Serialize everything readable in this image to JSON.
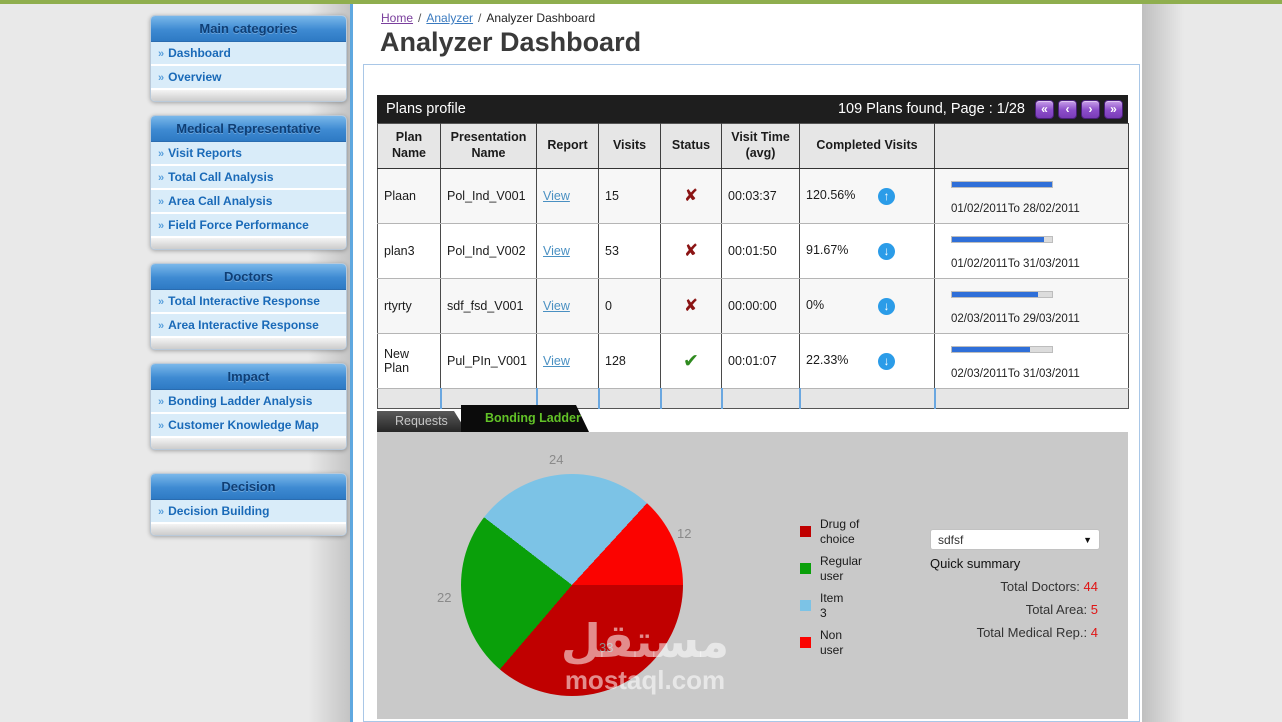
{
  "breadcrumb": {
    "separator": "/",
    "items": [
      {
        "label": "Home"
      },
      {
        "label": "Analyzer"
      },
      {
        "label": "Analyzer Dashboard"
      }
    ]
  },
  "header": {
    "title": "Analyzer Dashboard"
  },
  "sidebar": {
    "item_arrow": "»",
    "sections": [
      {
        "title": "Main categories",
        "items": [
          {
            "label": "Dashboard"
          },
          {
            "label": "Overview"
          }
        ]
      },
      {
        "title": "Medical Representative",
        "items": [
          {
            "label": "Visit Reports"
          },
          {
            "label": "Total Call Analysis"
          },
          {
            "label": "Area Call Analysis"
          },
          {
            "label": "Field Force Performance"
          }
        ]
      },
      {
        "title": "Doctors",
        "items": [
          {
            "label": "Total Interactive Response"
          },
          {
            "label": "Area Interactive Response"
          }
        ]
      },
      {
        "title": "Impact",
        "items": [
          {
            "label": "Bonding Ladder Analysis"
          },
          {
            "label": "Customer Knowledge Map"
          }
        ]
      },
      {
        "title": "Decision",
        "items": [
          {
            "label": "Decision Building"
          }
        ]
      }
    ]
  },
  "plans": {
    "title": "Plans profile",
    "result_summary": "109 Plans found, Page : 1/28",
    "pager": [
      {
        "name": "first-page",
        "glyph": "«"
      },
      {
        "name": "prev-page",
        "glyph": "‹"
      },
      {
        "name": "next-page",
        "glyph": "›"
      },
      {
        "name": "last-page",
        "glyph": "»"
      }
    ],
    "columns": [
      "Plan Name",
      "Presentation Name",
      "Report",
      "Visits",
      "Status",
      "Visit Time (avg)",
      "Completed Visits",
      ""
    ],
    "rows": [
      {
        "plan_name": "Plaan",
        "presentation_name": "Pol_Ind_V001",
        "report_link": "View",
        "visits": "15",
        "status": "fail",
        "status_glyph": "✘",
        "visit_time": "00:03:37",
        "completed": "120.56%",
        "trend": "up",
        "trend_glyph": "↑",
        "progress_pct": 100,
        "date_range": "01/02/2011To 28/02/2011"
      },
      {
        "plan_name": "plan3",
        "presentation_name": "Pol_Ind_V002",
        "report_link": "View",
        "visits": "53",
        "status": "fail",
        "status_glyph": "✘",
        "visit_time": "00:01:50",
        "completed": "91.67%",
        "trend": "down",
        "trend_glyph": "↓",
        "progress_pct": 92,
        "date_range": "01/02/2011To 31/03/2011"
      },
      {
        "plan_name": "rtyrty",
        "presentation_name": "sdf_fsd_V001",
        "report_link": "View",
        "visits": "0",
        "status": "fail",
        "status_glyph": "✘",
        "visit_time": "00:00:00",
        "completed": "0%",
        "trend": "down",
        "trend_glyph": "↓",
        "progress_pct": 86,
        "date_range": "02/03/2011To 29/03/2011"
      },
      {
        "plan_name": "New Plan",
        "presentation_name": "Pul_PIn_V001",
        "report_link": "View",
        "visits": "128",
        "status": "ok",
        "status_glyph": "✔",
        "visit_time": "00:01:07",
        "completed": "22.33%",
        "trend": "down",
        "trend_glyph": "↓",
        "progress_pct": 78,
        "date_range": "02/03/2011To 31/03/2011"
      }
    ]
  },
  "tabs": [
    {
      "label": "Requests",
      "active": false
    },
    {
      "label": "Bonding Ladder",
      "active": true
    }
  ],
  "chart_data": {
    "type": "pie",
    "title": "Bonding Ladder",
    "slices": [
      {
        "label": "Drug of choice",
        "label_lines": [
          "Drug of",
          "choice"
        ],
        "value": 33,
        "color": "#c00000"
      },
      {
        "label": "Regular user",
        "label_lines": [
          "Regular",
          "user"
        ],
        "value": 22,
        "color": "#0aa00a"
      },
      {
        "label": "Item 3",
        "label_lines": [
          "Item",
          "3"
        ],
        "value": 24,
        "color": "#7cc3e6"
      },
      {
        "label": "Non user",
        "label_lines": [
          "Non",
          "user"
        ],
        "value": 12,
        "color": "#fb0300"
      }
    ],
    "start_angle_deg_from_3oclock": 0,
    "direction": "clockwise",
    "legend_position": "right",
    "data_labels": "values",
    "background": "#c9c9c9"
  },
  "summary": {
    "dropdown_value": "sdfsf",
    "dropdown_arrow": "▼",
    "heading": "Quick summary",
    "totals": [
      {
        "label": "Total Doctors:",
        "value": "44"
      },
      {
        "label": "Total Area:",
        "value": "5"
      },
      {
        "label": "Total Medical Rep.:",
        "value": "4"
      }
    ]
  },
  "watermark": {
    "arabic": "مستقل",
    "latin": "mostaql.com"
  }
}
